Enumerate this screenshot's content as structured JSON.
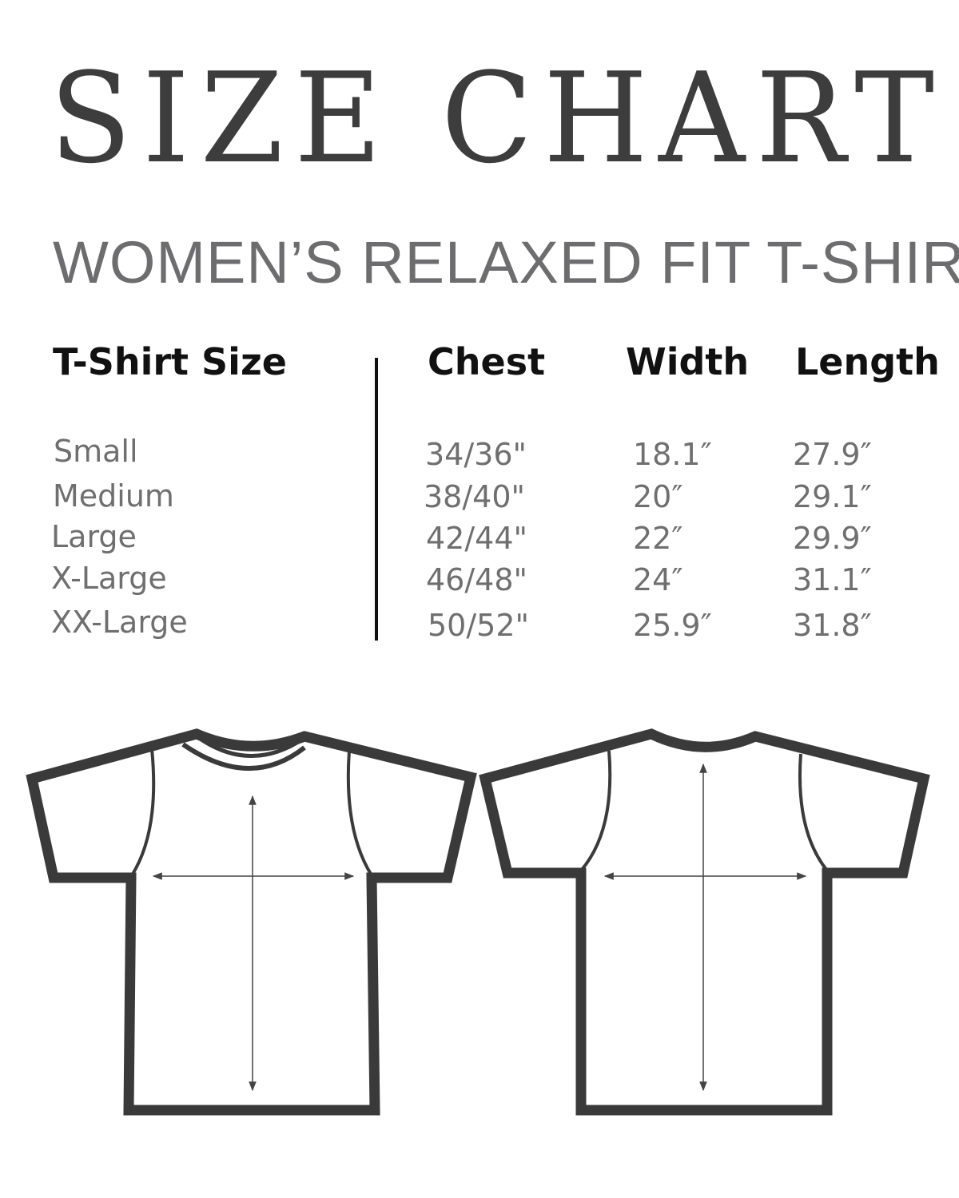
{
  "title": "SIZE CHART",
  "subtitle": "WOMEN’S RELAXED FIT T-SHIRT",
  "table": {
    "headers": [
      "T-Shirt Size",
      "Chest",
      "Width",
      "Length"
    ],
    "rows": [
      {
        "size": "Small",
        "chest": "34/36\"",
        "width": "18.1″",
        "length": "27.9″"
      },
      {
        "size": "Medium",
        "chest": "38/40\"",
        "width": "20″",
        "length": "29.1″"
      },
      {
        "size": "Large",
        "chest": "42/44\"",
        "width": "22″",
        "length": "29.9″"
      },
      {
        "size": "X-Large",
        "chest": "46/48\"",
        "width": "24″",
        "length": "31.1″"
      },
      {
        "size": "XX-Large",
        "chest": "50/52\"",
        "width": "25.9″",
        "length": "31.8″"
      }
    ]
  },
  "colors": {
    "outline": "#3a3a3a",
    "text_gray": "#6f6f6f",
    "header": "#111111"
  },
  "diagrams": [
    "t-shirt-front",
    "t-shirt-back"
  ]
}
